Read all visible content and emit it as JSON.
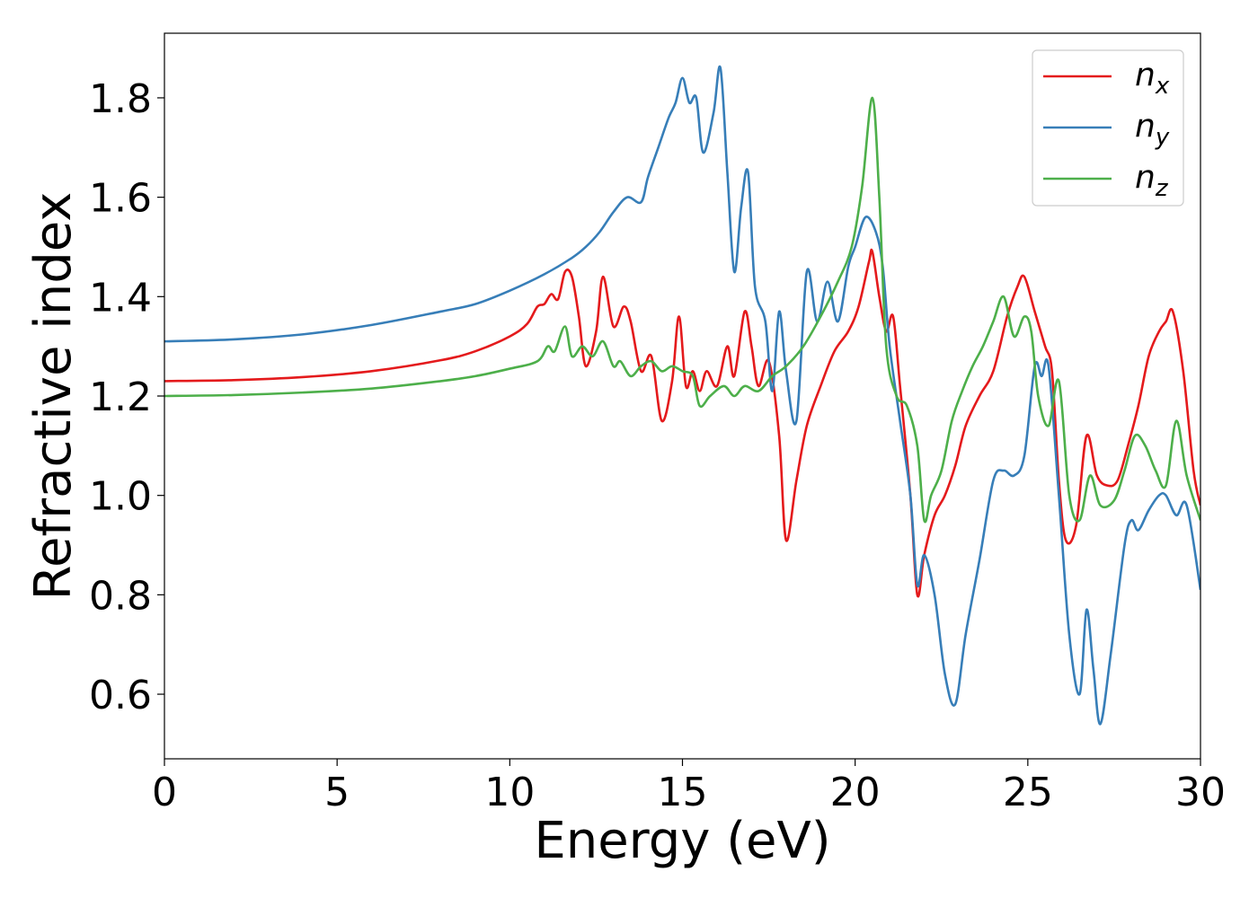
{
  "chart_data": {
    "type": "line",
    "xlabel": "Energy (eV)",
    "ylabel": "Refractive index",
    "xlim": [
      0,
      30
    ],
    "ylim": [
      0.47,
      1.93
    ],
    "xticks": [
      0,
      5,
      10,
      15,
      20,
      25,
      30
    ],
    "xtick_labels": [
      "0",
      "5",
      "10",
      "15",
      "20",
      "25",
      "30"
    ],
    "yticks": [
      0.6,
      0.8,
      1.0,
      1.2,
      1.4,
      1.6,
      1.8
    ],
    "ytick_labels": [
      "0.6",
      "0.8",
      "1.0",
      "1.2",
      "1.4",
      "1.6",
      "1.8"
    ],
    "grid": false,
    "legend_position": "top-right",
    "series": [
      {
        "name": "n",
        "subscript": "x",
        "color": "#e41a1c",
        "points": [
          [
            0,
            1.23
          ],
          [
            2,
            1.232
          ],
          [
            4,
            1.238
          ],
          [
            6,
            1.25
          ],
          [
            8,
            1.272
          ],
          [
            9,
            1.29
          ],
          [
            10,
            1.32
          ],
          [
            10.5,
            1.345
          ],
          [
            10.8,
            1.38
          ],
          [
            11.0,
            1.385
          ],
          [
            11.2,
            1.405
          ],
          [
            11.4,
            1.395
          ],
          [
            11.6,
            1.45
          ],
          [
            11.8,
            1.44
          ],
          [
            12.0,
            1.36
          ],
          [
            12.2,
            1.26
          ],
          [
            12.5,
            1.33
          ],
          [
            12.7,
            1.44
          ],
          [
            13.0,
            1.34
          ],
          [
            13.3,
            1.38
          ],
          [
            13.5,
            1.35
          ],
          [
            13.8,
            1.25
          ],
          [
            14.1,
            1.28
          ],
          [
            14.4,
            1.15
          ],
          [
            14.7,
            1.23
          ],
          [
            14.9,
            1.36
          ],
          [
            15.1,
            1.22
          ],
          [
            15.3,
            1.25
          ],
          [
            15.5,
            1.21
          ],
          [
            15.7,
            1.25
          ],
          [
            16.0,
            1.22
          ],
          [
            16.3,
            1.3
          ],
          [
            16.5,
            1.24
          ],
          [
            16.8,
            1.37
          ],
          [
            17.0,
            1.3
          ],
          [
            17.2,
            1.22
          ],
          [
            17.5,
            1.27
          ],
          [
            17.8,
            1.12
          ],
          [
            18.0,
            0.91
          ],
          [
            18.3,
            1.03
          ],
          [
            18.6,
            1.14
          ],
          [
            19.0,
            1.22
          ],
          [
            19.4,
            1.29
          ],
          [
            19.8,
            1.33
          ],
          [
            20.1,
            1.38
          ],
          [
            20.4,
            1.47
          ],
          [
            20.5,
            1.49
          ],
          [
            20.7,
            1.4
          ],
          [
            20.9,
            1.33
          ],
          [
            21.1,
            1.36
          ],
          [
            21.3,
            1.22
          ],
          [
            21.6,
            1.0
          ],
          [
            21.8,
            0.8
          ],
          [
            22.0,
            0.88
          ],
          [
            22.3,
            0.96
          ],
          [
            22.6,
            1.0
          ],
          [
            22.9,
            1.06
          ],
          [
            23.2,
            1.14
          ],
          [
            23.6,
            1.2
          ],
          [
            24.0,
            1.25
          ],
          [
            24.4,
            1.36
          ],
          [
            24.7,
            1.42
          ],
          [
            24.9,
            1.44
          ],
          [
            25.2,
            1.37
          ],
          [
            25.5,
            1.3
          ],
          [
            25.7,
            1.25
          ],
          [
            25.9,
            1.03
          ],
          [
            26.1,
            0.91
          ],
          [
            26.4,
            0.94
          ],
          [
            26.7,
            1.12
          ],
          [
            27.0,
            1.04
          ],
          [
            27.3,
            1.02
          ],
          [
            27.6,
            1.03
          ],
          [
            27.9,
            1.1
          ],
          [
            28.2,
            1.18
          ],
          [
            28.5,
            1.28
          ],
          [
            28.8,
            1.33
          ],
          [
            29.0,
            1.35
          ],
          [
            29.2,
            1.37
          ],
          [
            29.5,
            1.25
          ],
          [
            29.8,
            1.05
          ],
          [
            30.0,
            0.98
          ]
        ]
      },
      {
        "name": "n",
        "subscript": "y",
        "color": "#377eb8",
        "points": [
          [
            0,
            1.31
          ],
          [
            2,
            1.314
          ],
          [
            4,
            1.324
          ],
          [
            6,
            1.343
          ],
          [
            8,
            1.37
          ],
          [
            9,
            1.385
          ],
          [
            10,
            1.412
          ],
          [
            11,
            1.445
          ],
          [
            11.8,
            1.478
          ],
          [
            12.2,
            1.5
          ],
          [
            12.6,
            1.53
          ],
          [
            13.0,
            1.57
          ],
          [
            13.4,
            1.6
          ],
          [
            13.8,
            1.59
          ],
          [
            14.0,
            1.64
          ],
          [
            14.3,
            1.7
          ],
          [
            14.6,
            1.76
          ],
          [
            14.8,
            1.79
          ],
          [
            15.0,
            1.84
          ],
          [
            15.2,
            1.79
          ],
          [
            15.4,
            1.8
          ],
          [
            15.6,
            1.69
          ],
          [
            15.9,
            1.77
          ],
          [
            16.1,
            1.86
          ],
          [
            16.3,
            1.65
          ],
          [
            16.5,
            1.45
          ],
          [
            16.7,
            1.58
          ],
          [
            16.9,
            1.65
          ],
          [
            17.1,
            1.42
          ],
          [
            17.4,
            1.35
          ],
          [
            17.6,
            1.21
          ],
          [
            17.8,
            1.37
          ],
          [
            18.0,
            1.25
          ],
          [
            18.3,
            1.15
          ],
          [
            18.6,
            1.45
          ],
          [
            18.9,
            1.35
          ],
          [
            19.2,
            1.43
          ],
          [
            19.5,
            1.35
          ],
          [
            19.8,
            1.46
          ],
          [
            20.0,
            1.5
          ],
          [
            20.3,
            1.56
          ],
          [
            20.6,
            1.53
          ],
          [
            20.8,
            1.46
          ],
          [
            21.0,
            1.3
          ],
          [
            21.3,
            1.15
          ],
          [
            21.6,
            1.0
          ],
          [
            21.8,
            0.82
          ],
          [
            22.0,
            0.88
          ],
          [
            22.3,
            0.8
          ],
          [
            22.6,
            0.64
          ],
          [
            22.9,
            0.58
          ],
          [
            23.2,
            0.72
          ],
          [
            23.6,
            0.87
          ],
          [
            24.0,
            1.03
          ],
          [
            24.3,
            1.05
          ],
          [
            24.6,
            1.04
          ],
          [
            24.9,
            1.08
          ],
          [
            25.2,
            1.26
          ],
          [
            25.4,
            1.24
          ],
          [
            25.6,
            1.26
          ],
          [
            25.9,
            1.0
          ],
          [
            26.2,
            0.72
          ],
          [
            26.5,
            0.6
          ],
          [
            26.7,
            0.77
          ],
          [
            26.9,
            0.65
          ],
          [
            27.1,
            0.54
          ],
          [
            27.4,
            0.68
          ],
          [
            27.8,
            0.9
          ],
          [
            28.0,
            0.95
          ],
          [
            28.2,
            0.93
          ],
          [
            28.5,
            0.97
          ],
          [
            28.8,
            1.0
          ],
          [
            29.0,
            1.0
          ],
          [
            29.3,
            0.96
          ],
          [
            29.6,
            0.98
          ],
          [
            30.0,
            0.81
          ]
        ]
      },
      {
        "name": "n",
        "subscript": "z",
        "color": "#4daf4a",
        "points": [
          [
            0,
            1.2
          ],
          [
            2,
            1.202
          ],
          [
            4,
            1.207
          ],
          [
            6,
            1.215
          ],
          [
            8,
            1.23
          ],
          [
            9,
            1.24
          ],
          [
            10,
            1.255
          ],
          [
            10.8,
            1.27
          ],
          [
            11.1,
            1.3
          ],
          [
            11.3,
            1.29
          ],
          [
            11.6,
            1.34
          ],
          [
            11.8,
            1.28
          ],
          [
            12.1,
            1.3
          ],
          [
            12.4,
            1.28
          ],
          [
            12.7,
            1.31
          ],
          [
            13.0,
            1.26
          ],
          [
            13.2,
            1.27
          ],
          [
            13.5,
            1.24
          ],
          [
            13.8,
            1.26
          ],
          [
            14.1,
            1.27
          ],
          [
            14.4,
            1.25
          ],
          [
            14.7,
            1.26
          ],
          [
            15.0,
            1.25
          ],
          [
            15.3,
            1.24
          ],
          [
            15.5,
            1.18
          ],
          [
            15.8,
            1.2
          ],
          [
            16.2,
            1.22
          ],
          [
            16.5,
            1.2
          ],
          [
            16.8,
            1.22
          ],
          [
            17.2,
            1.21
          ],
          [
            17.6,
            1.24
          ],
          [
            18.0,
            1.26
          ],
          [
            18.5,
            1.3
          ],
          [
            19.0,
            1.36
          ],
          [
            19.5,
            1.43
          ],
          [
            19.9,
            1.5
          ],
          [
            20.2,
            1.62
          ],
          [
            20.5,
            1.8
          ],
          [
            20.7,
            1.6
          ],
          [
            20.9,
            1.3
          ],
          [
            21.2,
            1.2
          ],
          [
            21.5,
            1.18
          ],
          [
            21.8,
            1.1
          ],
          [
            22.0,
            0.95
          ],
          [
            22.2,
            1.0
          ],
          [
            22.5,
            1.05
          ],
          [
            22.8,
            1.15
          ],
          [
            23.1,
            1.21
          ],
          [
            23.4,
            1.26
          ],
          [
            23.7,
            1.3
          ],
          [
            24.0,
            1.35
          ],
          [
            24.3,
            1.4
          ],
          [
            24.6,
            1.32
          ],
          [
            24.9,
            1.36
          ],
          [
            25.1,
            1.33
          ],
          [
            25.3,
            1.2
          ],
          [
            25.6,
            1.14
          ],
          [
            25.9,
            1.23
          ],
          [
            26.2,
            1.0
          ],
          [
            26.5,
            0.95
          ],
          [
            26.8,
            1.04
          ],
          [
            27.1,
            0.98
          ],
          [
            27.5,
            0.99
          ],
          [
            27.8,
            1.05
          ],
          [
            28.1,
            1.12
          ],
          [
            28.4,
            1.1
          ],
          [
            28.7,
            1.05
          ],
          [
            29.0,
            1.02
          ],
          [
            29.3,
            1.15
          ],
          [
            29.6,
            1.04
          ],
          [
            30.0,
            0.95
          ]
        ]
      }
    ]
  }
}
